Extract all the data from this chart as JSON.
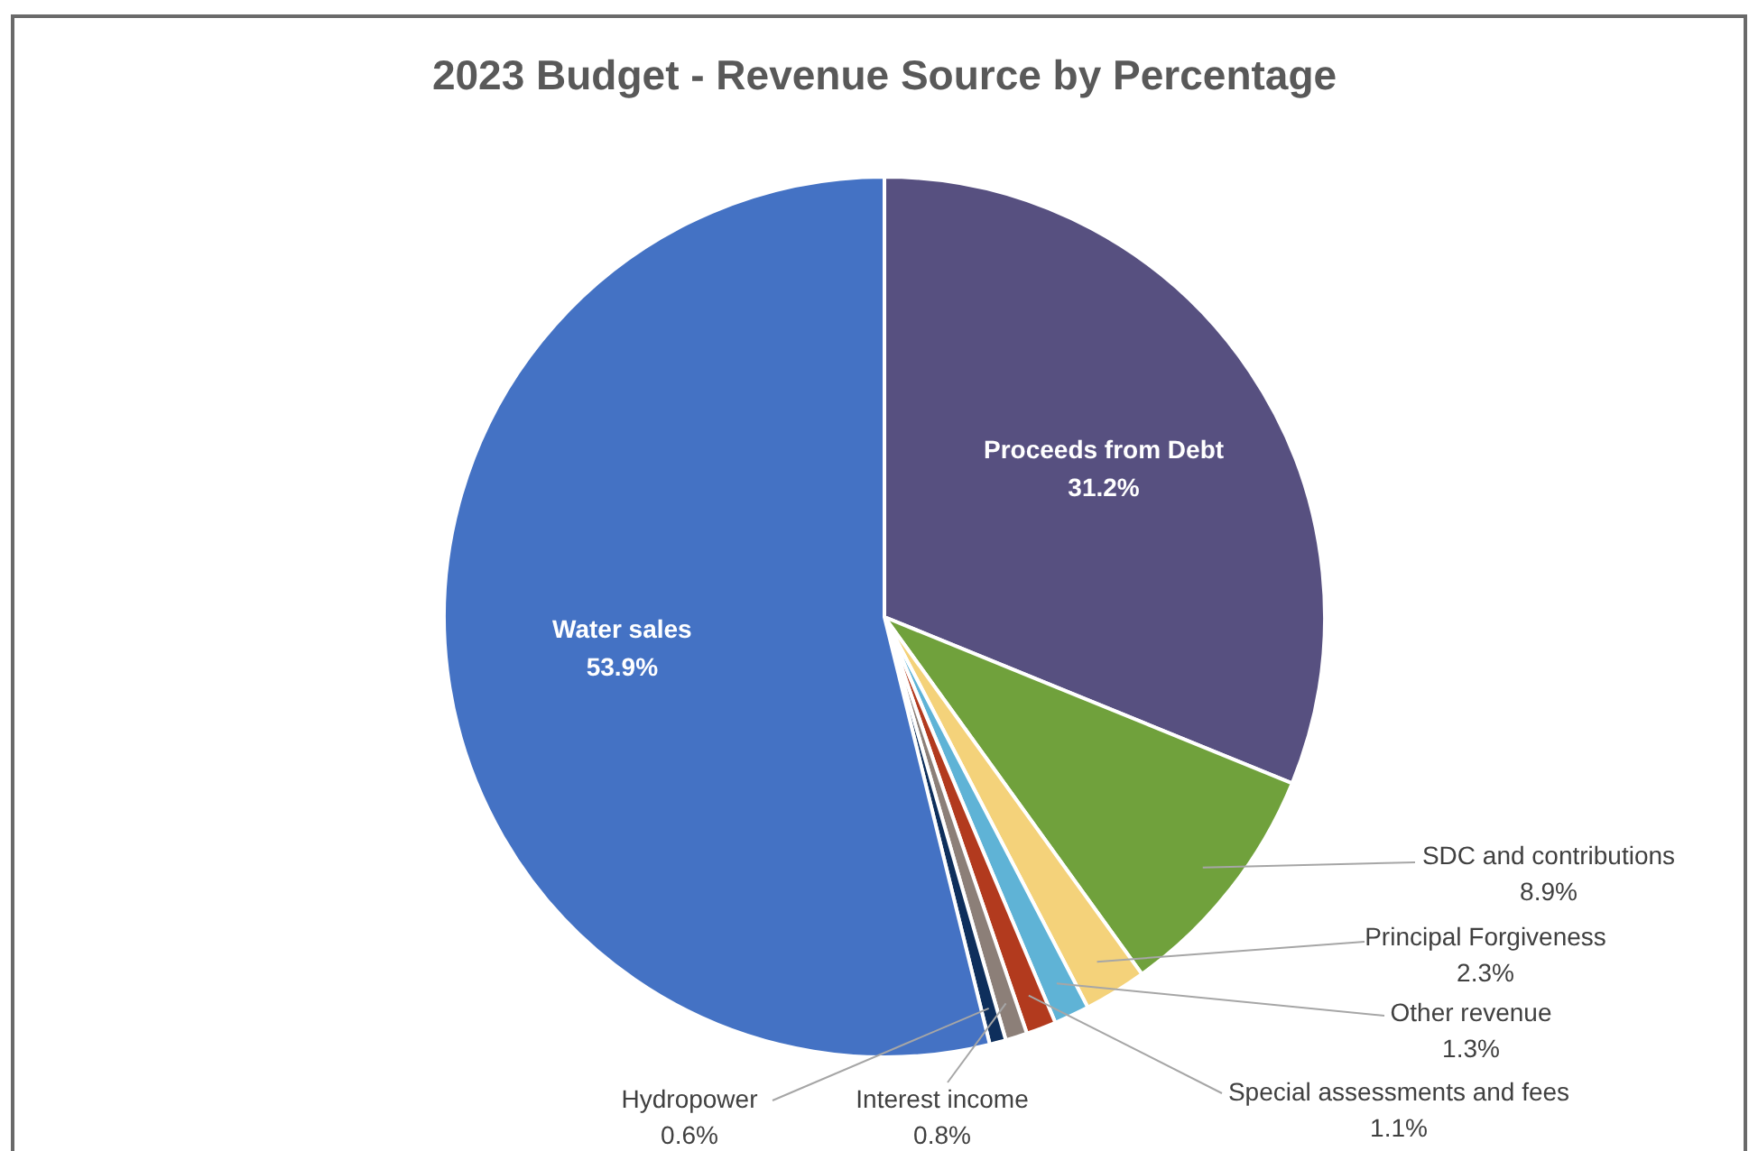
{
  "chart_data": {
    "type": "pie",
    "title": "2023 Budget - Revenue Source by Percentage",
    "categories": [
      "Proceeds from Debt",
      "SDC and contributions",
      "Principal Forgiveness",
      "Other revenue",
      "Special assessments and fees",
      "Interest income",
      "Hydropower",
      "Water sales"
    ],
    "values": [
      31.2,
      8.9,
      2.3,
      1.3,
      1.1,
      0.8,
      0.6,
      53.9
    ],
    "colors": [
      "#575080",
      "#70a13c",
      "#f4d27a",
      "#5fb3d6",
      "#b23a1e",
      "#8c7f78",
      "#0e2f5c",
      "#4472c4"
    ],
    "value_labels": [
      "31.2%",
      "8.9%",
      "2.3%",
      "1.3%",
      "1.1%",
      "0.8%",
      "0.6%",
      "53.9%"
    ]
  }
}
